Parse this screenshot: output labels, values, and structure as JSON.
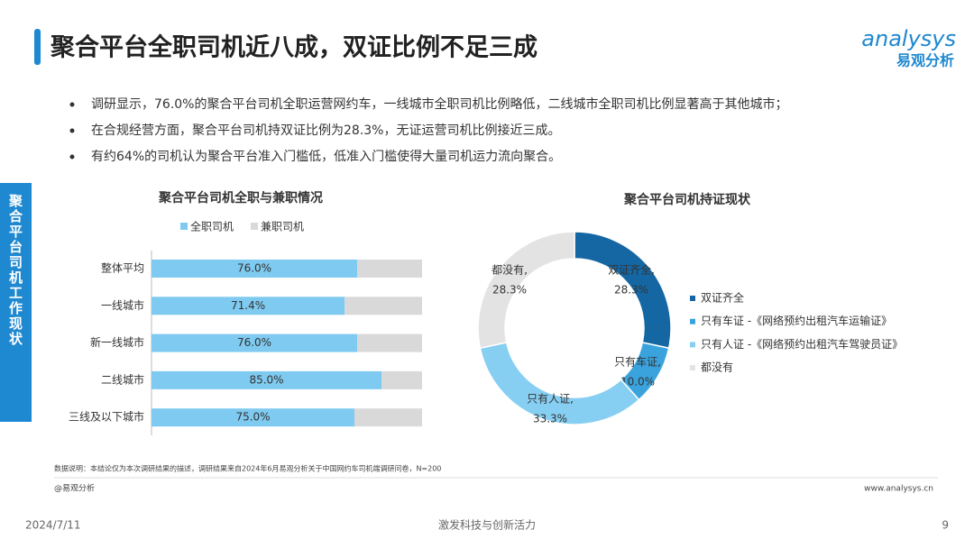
{
  "header": {
    "title": "聚合平台全职司机近八成，双证比例不足三成",
    "logo_en": "analysys",
    "logo_cn": "易观分析"
  },
  "side_tab": "聚合平台司机工作现状",
  "bullets": [
    "调研显示，76.0%的聚合平台司机全职运营网约车，一线城市全职司机比例略低，二线城市全职司机比例显著高于其他城市；",
    "在合规经营方面，聚合平台司机持双证比例为28.3%，无证运营司机比例接近三成。",
    "有约64%的司机认为聚合平台准入门槛低，低准入门槛使得大量司机运力流向聚合。"
  ],
  "chart_data": [
    {
      "type": "bar",
      "orientation": "horizontal",
      "stacked": true,
      "title": "聚合平台司机全职与兼职情况",
      "categories": [
        "整体平均",
        "一线城市",
        "新一线城市",
        "二线城市",
        "三线及以下城市"
      ],
      "series": [
        {
          "name": "全职司机",
          "color": "#7fcaf0",
          "values": [
            76.0,
            71.4,
            76.0,
            85.0,
            75.0
          ],
          "value_labels": [
            "76.0%",
            "71.4%",
            "76.0%",
            "85.0%",
            "75.0%"
          ]
        },
        {
          "name": "兼职司机",
          "color": "#d9d9d9",
          "values": [
            24.0,
            28.6,
            24.0,
            15.0,
            25.0
          ]
        }
      ],
      "xlim": [
        0,
        100
      ]
    },
    {
      "type": "pie",
      "donut": true,
      "title": "聚合平台司机持证现状",
      "categories": [
        "双证齐全",
        "只有车证 -《网络预约出租汽车运输证》",
        "只有人证 -《网络预约出租汽车驾驶员证》",
        "都没有"
      ],
      "data_labels": [
        "双证齐全,",
        "只有车证,",
        "只有人证,",
        "都没有,"
      ],
      "values": [
        28.3,
        10.0,
        33.3,
        28.3
      ],
      "value_labels": [
        "28.3%",
        "10.0%",
        "33.3%",
        "28.3%"
      ],
      "colors": [
        "#1567a3",
        "#3aa3dd",
        "#86cff2",
        "#e3e3e3"
      ]
    }
  ],
  "note": "数据说明：本结论仅为本次调研结果的描述，调研结果来自2024年6月易观分析关于中国网约车司机端调研问卷，N=200",
  "footer": {
    "source": "@易观分析",
    "website": "www.analysys.cn",
    "date": "2024/7/11",
    "slogan": "激发科技与创新活力",
    "page": "9"
  }
}
